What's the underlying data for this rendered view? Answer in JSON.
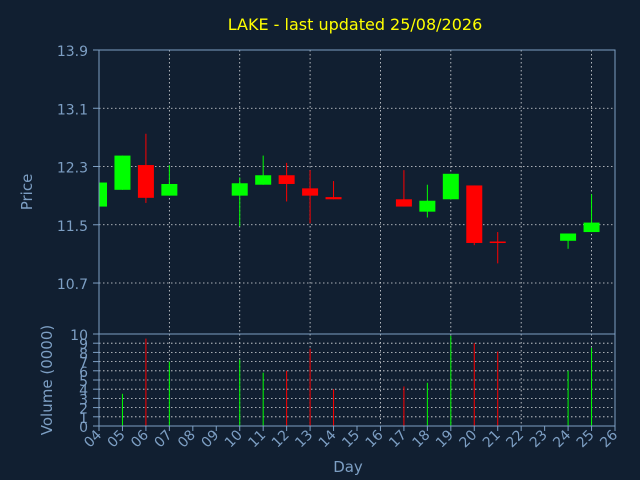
{
  "chart_data": {
    "type": "candlestick",
    "title": "LAKE - last updated 25/08/2026",
    "xlabel": "Day",
    "price_panel": {
      "ylabel": "Price",
      "ylim": [
        10,
        13.9
      ],
      "yticks": [
        "10",
        "10.7",
        "11.5",
        "12.3",
        "13.1",
        "13.9"
      ],
      "grid": true
    },
    "volume_panel": {
      "ylabel": "Volume (0000)",
      "ylim": [
        0,
        10
      ],
      "yticks": [
        "0",
        "1",
        "2",
        "3",
        "4",
        "5",
        "6",
        "7",
        "8",
        "9"
      ],
      "grid": true
    },
    "x_ticks": [
      "04",
      "05",
      "06",
      "07",
      "08",
      "09",
      "10",
      "11",
      "12",
      "13",
      "14",
      "15",
      "16",
      "17",
      "18",
      "19",
      "20",
      "21",
      "22",
      "23",
      "24",
      "25",
      "26"
    ],
    "colors": {
      "up": "#00ff00",
      "down": "#ff0000",
      "title": "#ffff00",
      "axis": "#7d9fc4",
      "background": "#111f31"
    },
    "candles": [
      {
        "day": 4,
        "open": 11.75,
        "high": 12.08,
        "low": 11.75,
        "close": 12.08,
        "volume": 0
      },
      {
        "day": 5,
        "open": 11.98,
        "high": 12.45,
        "low": 11.98,
        "close": 12.45,
        "volume": 3.5
      },
      {
        "day": 6,
        "open": 12.32,
        "high": 12.75,
        "low": 11.8,
        "close": 11.87,
        "volume": 9.5
      },
      {
        "day": 7,
        "open": 11.9,
        "high": 12.32,
        "low": 11.9,
        "close": 12.06,
        "volume": 7
      },
      {
        "day": 10,
        "open": 11.9,
        "high": 12.15,
        "low": 11.48,
        "close": 12.07,
        "volume": 7.2
      },
      {
        "day": 11,
        "open": 12.05,
        "high": 12.45,
        "low": 12.05,
        "close": 12.18,
        "volume": 5.8
      },
      {
        "day": 12,
        "open": 12.18,
        "high": 12.35,
        "low": 11.82,
        "close": 12.06,
        "volume": 6
      },
      {
        "day": 13,
        "open": 12.0,
        "high": 12.25,
        "low": 11.52,
        "close": 11.9,
        "volume": 8.4
      },
      {
        "day": 14,
        "open": 11.88,
        "high": 12.1,
        "low": 11.85,
        "close": 11.85,
        "volume": 4
      },
      {
        "day": 17,
        "open": 11.85,
        "high": 12.25,
        "low": 11.75,
        "close": 11.75,
        "volume": 4.3
      },
      {
        "day": 18,
        "open": 11.68,
        "high": 12.05,
        "low": 11.6,
        "close": 11.83,
        "volume": 4.7
      },
      {
        "day": 19,
        "open": 11.85,
        "high": 12.2,
        "low": 11.85,
        "close": 12.2,
        "volume": 9.8
      },
      {
        "day": 20,
        "open": 12.04,
        "high": 12.04,
        "low": 11.22,
        "close": 11.25,
        "volume": 9
      },
      {
        "day": 21,
        "open": 11.27,
        "high": 11.4,
        "low": 10.97,
        "close": 11.25,
        "volume": 8.1
      },
      {
        "day": 24,
        "open": 11.28,
        "high": 11.38,
        "low": 11.17,
        "close": 11.38,
        "volume": 6
      },
      {
        "day": 25,
        "open": 11.4,
        "high": 11.92,
        "low": 11.4,
        "close": 11.53,
        "volume": 8.5
      }
    ]
  }
}
